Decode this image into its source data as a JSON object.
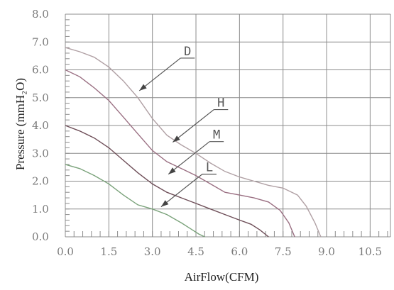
{
  "chart_data": {
    "type": "line",
    "xlabel": "AirFlow(CFM)",
    "ylabel": "Pressure (mmH₂O)",
    "xlim": [
      0,
      11.2
    ],
    "ylim": [
      0,
      8
    ],
    "x_ticks": [
      "0.0",
      "1.5",
      "3.0",
      "4.5",
      "6.0",
      "7.5",
      "9.0",
      "10.5"
    ],
    "y_ticks": [
      "0.0",
      "1.0",
      "2.0",
      "3.0",
      "4.0",
      "5.0",
      "6.0",
      "7.0",
      "8.0"
    ],
    "grid": true,
    "series": [
      {
        "name": "D",
        "color": "#b0a0a4",
        "points": [
          [
            0,
            6.8
          ],
          [
            0.5,
            6.65
          ],
          [
            1.0,
            6.45
          ],
          [
            1.5,
            6.1
          ],
          [
            2.0,
            5.6
          ],
          [
            2.5,
            5.0
          ],
          [
            3.0,
            4.25
          ],
          [
            3.5,
            3.65
          ],
          [
            4.0,
            3.3
          ],
          [
            4.5,
            3.0
          ],
          [
            5.0,
            2.65
          ],
          [
            5.5,
            2.35
          ],
          [
            6.0,
            2.15
          ],
          [
            6.5,
            2.0
          ],
          [
            7.0,
            1.85
          ],
          [
            7.5,
            1.75
          ],
          [
            8.0,
            1.5
          ],
          [
            8.3,
            1.1
          ],
          [
            8.6,
            0.5
          ],
          [
            8.8,
            0.0
          ]
        ]
      },
      {
        "name": "H",
        "color": "#9a6f82",
        "points": [
          [
            0,
            6.0
          ],
          [
            0.5,
            5.75
          ],
          [
            1.0,
            5.35
          ],
          [
            1.5,
            4.9
          ],
          [
            2.0,
            4.3
          ],
          [
            2.5,
            3.7
          ],
          [
            3.0,
            3.1
          ],
          [
            3.5,
            2.7
          ],
          [
            4.0,
            2.45
          ],
          [
            4.5,
            2.2
          ],
          [
            5.0,
            1.9
          ],
          [
            5.5,
            1.6
          ],
          [
            6.0,
            1.5
          ],
          [
            6.5,
            1.4
          ],
          [
            7.0,
            1.25
          ],
          [
            7.4,
            0.95
          ],
          [
            7.7,
            0.5
          ],
          [
            7.9,
            0.0
          ]
        ]
      },
      {
        "name": "M",
        "color": "#6e4e58",
        "points": [
          [
            0,
            4.0
          ],
          [
            0.5,
            3.8
          ],
          [
            1.0,
            3.55
          ],
          [
            1.5,
            3.2
          ],
          [
            2.0,
            2.75
          ],
          [
            2.5,
            2.3
          ],
          [
            3.0,
            1.9
          ],
          [
            3.5,
            1.6
          ],
          [
            4.0,
            1.4
          ],
          [
            4.5,
            1.2
          ],
          [
            5.0,
            1.0
          ],
          [
            5.5,
            0.8
          ],
          [
            6.0,
            0.6
          ],
          [
            6.4,
            0.45
          ],
          [
            6.7,
            0.25
          ],
          [
            7.0,
            0.0
          ]
        ]
      },
      {
        "name": "L",
        "color": "#7aa27a",
        "points": [
          [
            0,
            2.6
          ],
          [
            0.5,
            2.45
          ],
          [
            1.0,
            2.2
          ],
          [
            1.5,
            1.9
          ],
          [
            2.0,
            1.5
          ],
          [
            2.5,
            1.15
          ],
          [
            3.0,
            1.0
          ],
          [
            3.5,
            0.8
          ],
          [
            4.0,
            0.5
          ],
          [
            4.3,
            0.3
          ],
          [
            4.6,
            0.1
          ],
          [
            4.8,
            0.0
          ]
        ]
      }
    ],
    "callouts": [
      {
        "label": "D",
        "tip": [
          2.55,
          5.25
        ]
      },
      {
        "label": "H",
        "tip": [
          3.7,
          3.4
        ]
      },
      {
        "label": "M",
        "tip": [
          3.55,
          2.25
        ]
      },
      {
        "label": "L",
        "tip": [
          3.3,
          1.08
        ]
      }
    ]
  }
}
